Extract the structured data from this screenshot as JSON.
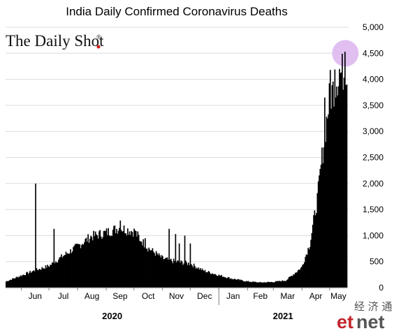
{
  "chart_data": {
    "type": "bar",
    "title": "India Daily Confirmed Coronavirus Deaths",
    "ylim": [
      0,
      5000
    ],
    "y_ticks": [
      "0",
      "500",
      "1,000",
      "1,500",
      "2,000",
      "2,500",
      "3,000",
      "3,500",
      "4,000",
      "4,500",
      "5,000"
    ],
    "y_tick_values": [
      0,
      500,
      1000,
      1500,
      2000,
      2500,
      3000,
      3500,
      4000,
      4500,
      5000
    ],
    "y_axis_position": "right",
    "grid": true,
    "month_labels": [
      "Jun",
      "Jul",
      "Aug",
      "Sep",
      "Oct",
      "Nov",
      "Dec",
      "Jan",
      "Feb",
      "Mar",
      "Apr",
      "May"
    ],
    "year_labels": [
      "2020",
      "2021"
    ],
    "x_start": "2020-05-15",
    "x_end": "2021-05-20",
    "series": [
      {
        "color": "#000000",
        "anchor_points": [
          [
            "2020-05-15",
            120
          ],
          [
            "2020-05-31",
            230
          ],
          [
            "2020-06-15",
            330
          ],
          [
            "2020-07-01",
            420
          ],
          [
            "2020-07-15",
            600
          ],
          [
            "2020-08-01",
            800
          ],
          [
            "2020-08-15",
            980
          ],
          [
            "2020-09-01",
            1060
          ],
          [
            "2020-09-15",
            1150
          ],
          [
            "2020-10-01",
            1080
          ],
          [
            "2020-10-15",
            780
          ],
          [
            "2020-11-01",
            560
          ],
          [
            "2020-11-15",
            500
          ],
          [
            "2020-12-01",
            460
          ],
          [
            "2020-12-15",
            330
          ],
          [
            "2021-01-01",
            240
          ],
          [
            "2021-01-15",
            175
          ],
          [
            "2021-02-01",
            120
          ],
          [
            "2021-02-15",
            100
          ],
          [
            "2021-03-01",
            110
          ],
          [
            "2021-03-15",
            140
          ],
          [
            "2021-04-01",
            390
          ],
          [
            "2021-04-10",
            850
          ],
          [
            "2021-04-18",
            1700
          ],
          [
            "2021-04-25",
            2800
          ],
          [
            "2021-05-01",
            3600
          ],
          [
            "2021-05-10",
            4050
          ],
          [
            "2021-05-20",
            4200
          ]
        ],
        "spikes": [
          [
            "2020-06-16",
            2000
          ],
          [
            "2020-07-06",
            1130
          ],
          [
            "2020-09-16",
            1290
          ],
          [
            "2020-10-02",
            1100
          ],
          [
            "2020-10-07",
            900
          ],
          [
            "2020-10-13",
            950
          ],
          [
            "2020-11-08",
            1130
          ],
          [
            "2020-11-15",
            1030
          ],
          [
            "2020-11-19",
            850
          ],
          [
            "2020-11-25",
            1000
          ],
          [
            "2020-12-01",
            850
          ],
          [
            "2021-04-26",
            3650
          ],
          [
            "2021-05-02",
            4180
          ],
          [
            "2021-05-07",
            4190
          ],
          [
            "2021-05-12",
            4200
          ],
          [
            "2021-05-18",
            4530
          ]
        ]
      }
    ],
    "highlight": {
      "date": "2021-05-18",
      "value": 4500,
      "color": "#dcb4ee"
    }
  },
  "branding": {
    "source_logo": "The Daily Shot",
    "registered_mark": "®",
    "watermark_cjk": "经 济 通",
    "watermark_latin_et": "et",
    "watermark_latin_net": "net"
  }
}
